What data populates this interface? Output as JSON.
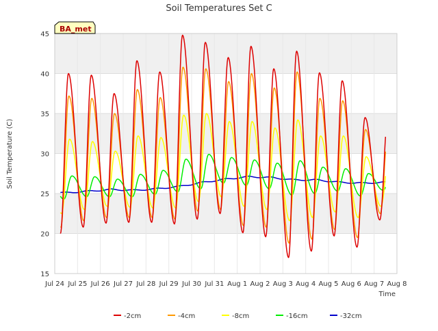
{
  "chart_data": {
    "type": "line",
    "title": "Soil Temperatures Set C",
    "xlabel": "Time",
    "ylabel": "Soil Temperature (C)",
    "site_badge": "BA_met",
    "ylim": [
      15,
      45
    ],
    "yticks": [
      15,
      20,
      25,
      30,
      35,
      40,
      45
    ],
    "xlim": [
      "2024-07-24",
      "2024-08-08"
    ],
    "xticks": [
      "Jul 24",
      "Jul 25",
      "Jul 26",
      "Jul 27",
      "Jul 28",
      "Jul 29",
      "Jul 30",
      "Jul 31",
      "Aug 1",
      "Aug 2",
      "Aug 3",
      "Aug 4",
      "Aug 5",
      "Aug 6",
      "Aug 7",
      "Aug 8"
    ],
    "grid": true,
    "legend_position": "bottom",
    "series_start": "2024-07-24 06:00",
    "series_end": "2024-08-07 12:00",
    "series": [
      {
        "name": "-2cm",
        "color": "#dd0000",
        "daily_min": [
          20.0,
          20.8,
          21.3,
          21.4,
          21.4,
          21.2,
          21.8,
          22.5,
          20.1,
          19.6,
          17.0,
          17.8,
          19.7,
          18.3,
          21.7
        ],
        "daily_max": [
          40.0,
          39.8,
          37.5,
          41.6,
          40.2,
          44.8,
          43.9,
          42.0,
          43.4,
          40.6,
          42.8,
          40.1,
          39.1,
          34.5
        ]
      },
      {
        "name": "-4cm",
        "color": "#ff9900",
        "daily_min": [
          20.8,
          21.6,
          22.0,
          22.0,
          22.0,
          21.8,
          22.8,
          23.0,
          21.0,
          20.8,
          18.8,
          19.3,
          20.5,
          19.5,
          22.5
        ],
        "daily_max": [
          37.2,
          36.9,
          35.0,
          38.0,
          37.0,
          40.8,
          40.6,
          39.0,
          40.0,
          38.2,
          40.2,
          36.9,
          36.6,
          33.0
        ]
      },
      {
        "name": "-8cm",
        "color": "#ffff00",
        "daily_min": [
          22.5,
          23.0,
          23.4,
          23.3,
          23.2,
          23.2,
          24.0,
          24.6,
          23.4,
          23.0,
          21.6,
          22.0,
          22.7,
          22.0,
          23.4
        ],
        "daily_max": [
          31.8,
          31.5,
          30.3,
          32.2,
          32.0,
          34.8,
          35.0,
          34.0,
          34.0,
          33.2,
          34.2,
          32.2,
          32.2,
          29.6
        ]
      },
      {
        "name": "-16cm",
        "color": "#00ee00",
        "daily_min": [
          24.3,
          24.6,
          24.6,
          24.6,
          24.9,
          25.2,
          25.6,
          26.3,
          26.0,
          25.6,
          24.8,
          25.0,
          25.3,
          24.7,
          25.4
        ],
        "daily_max": [
          27.2,
          27.1,
          26.8,
          27.4,
          27.9,
          29.3,
          29.9,
          29.5,
          29.2,
          28.8,
          29.1,
          28.3,
          28.1,
          27.5
        ]
      },
      {
        "name": "-32cm",
        "color": "#0000cc",
        "daily_values": [
          25.1,
          25.3,
          25.5,
          25.4,
          25.6,
          25.9,
          26.4,
          26.8,
          27.1,
          27.0,
          26.7,
          26.7,
          26.4,
          26.3,
          26.4
        ]
      }
    ]
  }
}
